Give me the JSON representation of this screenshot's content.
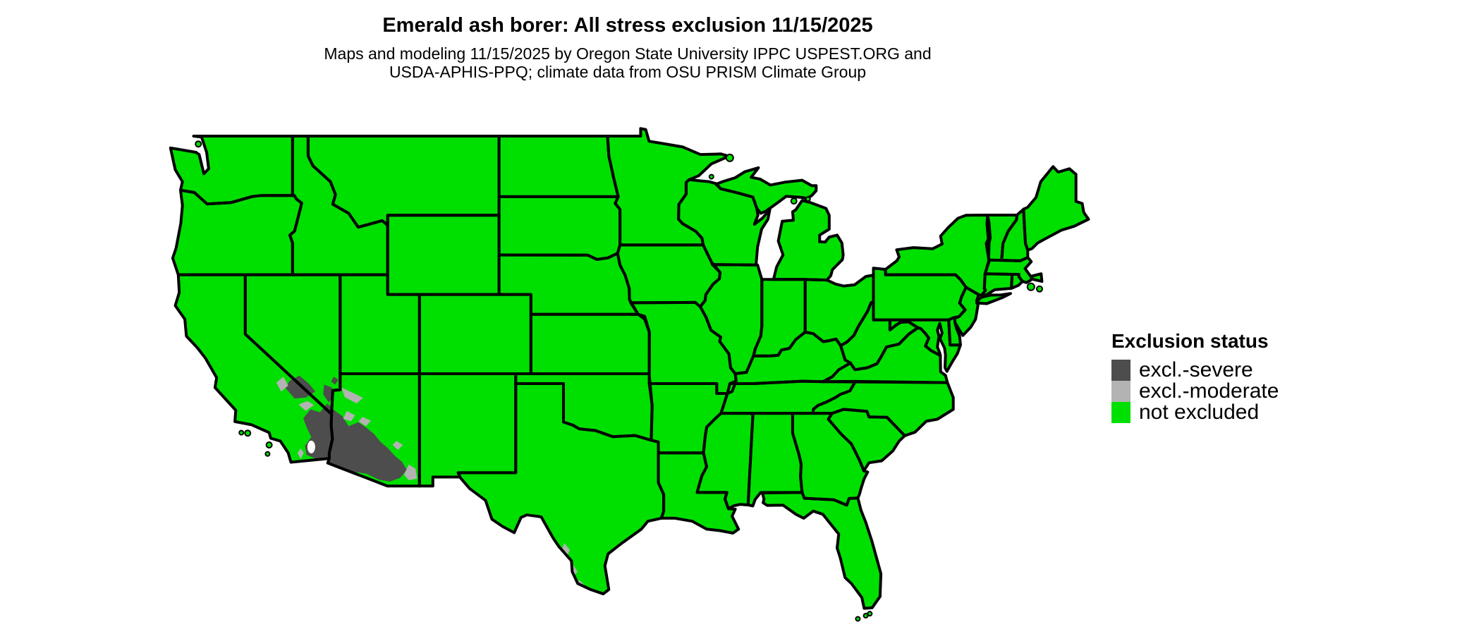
{
  "title": "Emerald ash borer: All stress exclusion 11/15/2025",
  "subtitle_line1": "Maps and modeling 11/15/2025 by Oregon State University IPPC USPEST.ORG and",
  "subtitle_line2": "USDA-APHIS-PPQ; climate data from OSU PRISM Climate Group",
  "legend": {
    "title": "Exclusion status",
    "items": [
      {
        "label": "excl.-severe",
        "color": "#4d4d4d"
      },
      {
        "label": "excl.-moderate",
        "color": "#b3b3b3"
      },
      {
        "label": "not excluded",
        "color": "#00e000"
      }
    ]
  },
  "map": {
    "type": "status-choropleth",
    "region": "Continental United States with state boundaries",
    "background": "#ffffff",
    "border_color": "#000000",
    "fill_color": "#00e000",
    "status_regions": [
      {
        "status": "excl.-severe",
        "where": "Mojave and Sonoran Desert: southeastern California, southern tip of Nevada, western and southern Arizona"
      },
      {
        "status": "excl.-moderate",
        "where": "fringes of the desert severe zone and patches along the Rio Grande in southern Texas and Big Bend"
      },
      {
        "status": "not excluded",
        "where": "all remaining areas of the continental United States"
      }
    ]
  }
}
